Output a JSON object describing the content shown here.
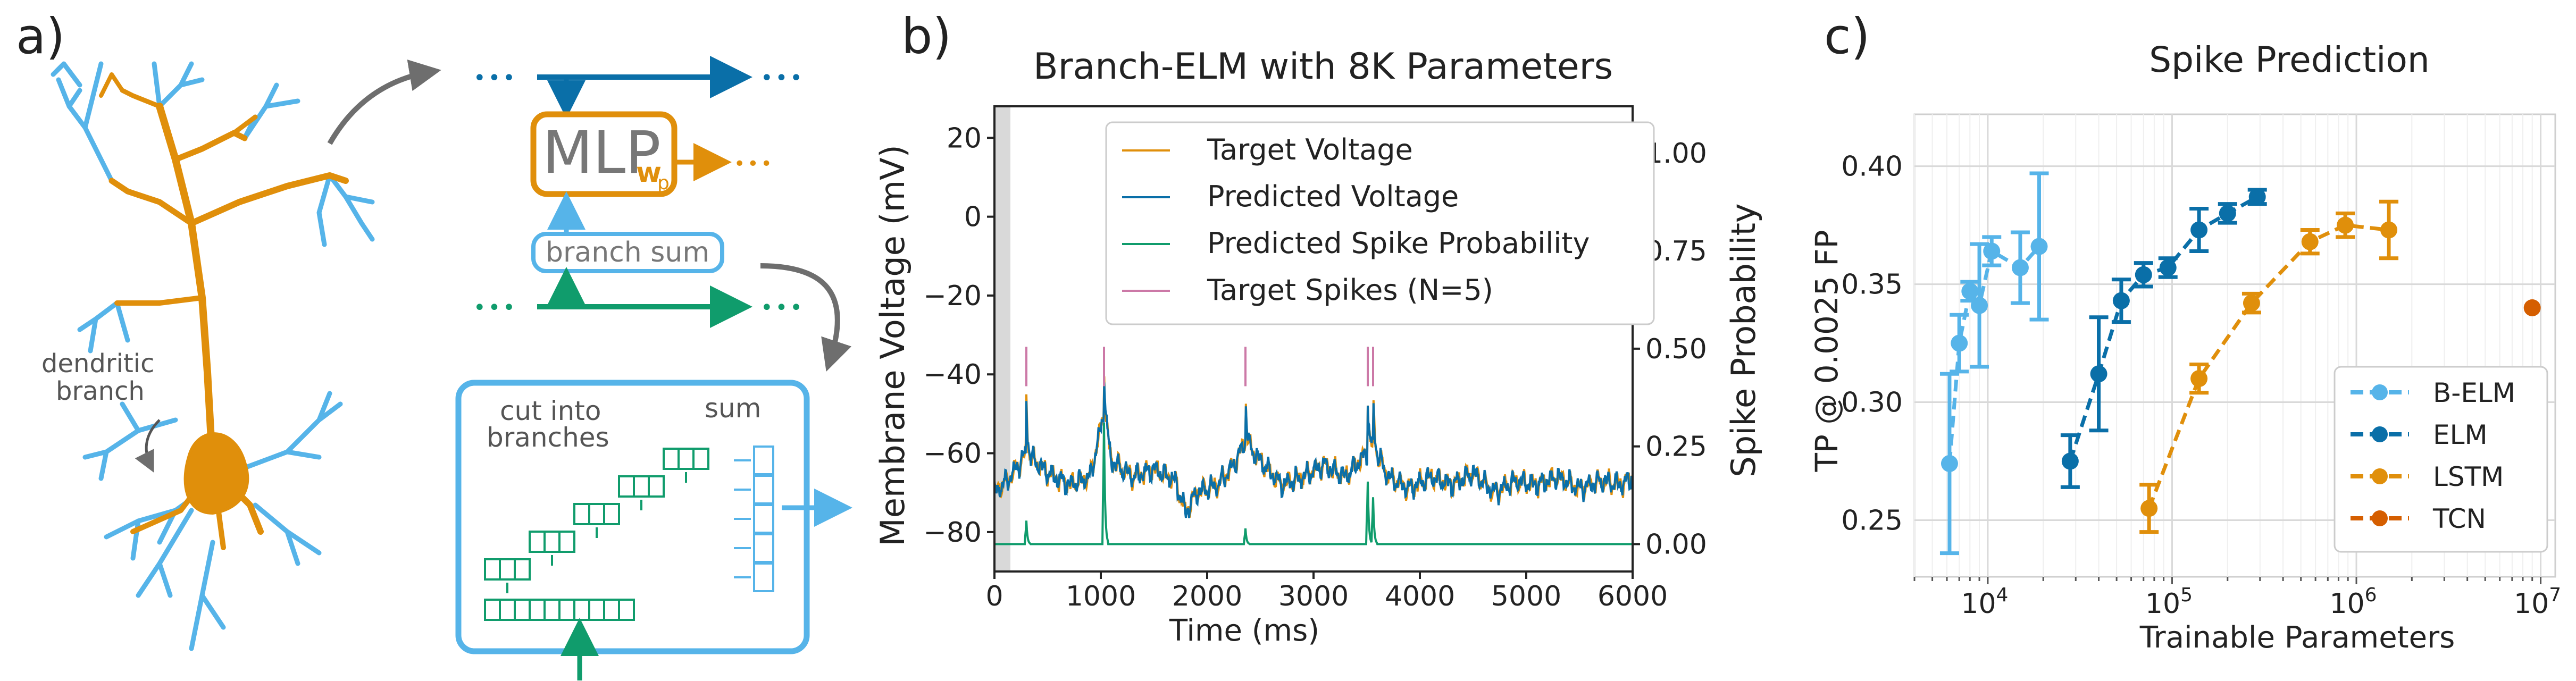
{
  "panels": {
    "a": {
      "label": "a)",
      "mlp_main": "MLP",
      "mlp_sub": "w",
      "mlp_subsub": "p",
      "branch_sum": "branch sum",
      "dendritic_line1": "dendritic",
      "dendritic_line2": "branch",
      "cut_line1": "cut into",
      "cut_line2": "branches",
      "sum_label": "sum",
      "dots": "•••"
    },
    "b": {
      "label": "b)"
    },
    "c": {
      "label": "c)"
    }
  },
  "colors": {
    "orange": "#e08f0b",
    "light_blue": "#56b4e9",
    "dark_blue": "#0a6fa8",
    "green": "#109c6c",
    "magenta": "#cc79a7",
    "tcn": "#d55e00",
    "gray_arrow": "#6e6e6e"
  },
  "chart_data": [
    {
      "type": "line",
      "title": "Branch-ELM with 8K Parameters",
      "xlabel": "Time (ms)",
      "ylabel": "Membrane Voltage (mV)",
      "y2label": "Spike Probability",
      "xlim": [
        0,
        6000
      ],
      "ylim": [
        -90,
        28
      ],
      "y2lim": [
        -0.07,
        1.12
      ],
      "xticks": [
        "0",
        "1000",
        "2000",
        "3000",
        "4000",
        "5000",
        "6000"
      ],
      "yticks": [
        "−80",
        "−60",
        "−40",
        "−20",
        "0",
        "20"
      ],
      "y2ticks": [
        "0.00",
        "0.25",
        "0.50",
        "0.75",
        "1.00"
      ],
      "grid": false,
      "legend_position": "top-right",
      "shaded_region_x": [
        0,
        150
      ],
      "series": [
        {
          "name": "Target Voltage",
          "color": "#e08f0b"
        },
        {
          "name": "Predicted Voltage",
          "color": "#0a6fa8"
        },
        {
          "name": "Predicted Spike Probability",
          "color": "#109c6c"
        },
        {
          "name": "Target Spikes (N=5)",
          "color": "#cc79a7"
        }
      ],
      "target_spike_times": [
        300,
        1030,
        2360,
        3510,
        3560
      ],
      "voltage_anchors": [
        [
          0,
          -70
        ],
        [
          150,
          -66
        ],
        [
          300,
          -60
        ],
        [
          500,
          -65
        ],
        [
          700,
          -68
        ],
        [
          900,
          -66
        ],
        [
          1030,
          -50
        ],
        [
          1100,
          -62
        ],
        [
          1300,
          -66
        ],
        [
          1500,
          -64
        ],
        [
          1700,
          -67
        ],
        [
          1800,
          -75
        ],
        [
          1900,
          -70
        ],
        [
          2100,
          -68
        ],
        [
          2250,
          -63
        ],
        [
          2360,
          -57
        ],
        [
          2500,
          -62
        ],
        [
          2700,
          -68
        ],
        [
          2900,
          -66
        ],
        [
          3100,
          -63
        ],
        [
          3300,
          -66
        ],
        [
          3500,
          -60
        ],
        [
          3560,
          -58
        ],
        [
          3700,
          -66
        ],
        [
          3900,
          -69
        ],
        [
          4100,
          -66
        ],
        [
          4300,
          -68
        ],
        [
          4500,
          -65
        ],
        [
          4700,
          -70
        ],
        [
          4900,
          -67
        ],
        [
          5100,
          -68
        ],
        [
          5300,
          -66
        ],
        [
          5500,
          -69
        ],
        [
          5700,
          -67
        ],
        [
          5900,
          -68
        ],
        [
          6000,
          -66
        ]
      ],
      "spike_probability": [
        [
          300,
          0.06
        ],
        [
          1030,
          0.31
        ],
        [
          2360,
          0.04
        ],
        [
          3510,
          0.16
        ],
        [
          3560,
          0.12
        ]
      ]
    },
    {
      "type": "scatter",
      "title": "Spike Prediction",
      "xlabel": "Trainable Parameters",
      "ylabel": "TP @ 0.0025 FP",
      "xscale": "log",
      "xlim": [
        4000,
        12000000
      ],
      "ylim": [
        0.226,
        0.422
      ],
      "xticks": [
        "10^4",
        "10^5",
        "10^6",
        "10^7"
      ],
      "yticks": [
        "0.25",
        "0.30",
        "0.35",
        "0.40"
      ],
      "grid": true,
      "legend_position": "bottom-right",
      "series": [
        {
          "name": "B-ELM",
          "color": "#56b4e9",
          "points": [
            {
              "x": 6200,
              "y": 0.274,
              "err": 0.038
            },
            {
              "x": 7000,
              "y": 0.325,
              "err": 0.012
            },
            {
              "x": 8000,
              "y": 0.347,
              "err": 0.004
            },
            {
              "x": 9000,
              "y": 0.341,
              "err": 0.026
            },
            {
              "x": 10500,
              "y": 0.364,
              "err": 0.006
            },
            {
              "x": 15000,
              "y": 0.357,
              "err": 0.015
            },
            {
              "x": 19000,
              "y": 0.366,
              "err": 0.031
            }
          ]
        },
        {
          "name": "ELM",
          "color": "#0a6fa8",
          "points": [
            {
              "x": 28000,
              "y": 0.275,
              "err": 0.011
            },
            {
              "x": 40000,
              "y": 0.312,
              "err": 0.024
            },
            {
              "x": 53000,
              "y": 0.343,
              "err": 0.009
            },
            {
              "x": 70000,
              "y": 0.354,
              "err": 0.005
            },
            {
              "x": 95000,
              "y": 0.357,
              "err": 0.004
            },
            {
              "x": 140000,
              "y": 0.373,
              "err": 0.009
            },
            {
              "x": 200000,
              "y": 0.38,
              "err": 0.004
            },
            {
              "x": 290000,
              "y": 0.387,
              "err": 0.003
            }
          ]
        },
        {
          "name": "LSTM",
          "color": "#e08f0b",
          "points": [
            {
              "x": 75000,
              "y": 0.255,
              "err": 0.01
            },
            {
              "x": 140000,
              "y": 0.31,
              "err": 0.006
            },
            {
              "x": 270000,
              "y": 0.342,
              "err": 0.004
            },
            {
              "x": 560000,
              "y": 0.368,
              "err": 0.005
            },
            {
              "x": 870000,
              "y": 0.375,
              "err": 0.005
            },
            {
              "x": 1500000,
              "y": 0.373,
              "err": 0.012
            }
          ]
        },
        {
          "name": "TCN",
          "color": "#d55e00",
          "points": [
            {
              "x": 9000000,
              "y": 0.34,
              "err": 0
            }
          ]
        }
      ]
    }
  ]
}
